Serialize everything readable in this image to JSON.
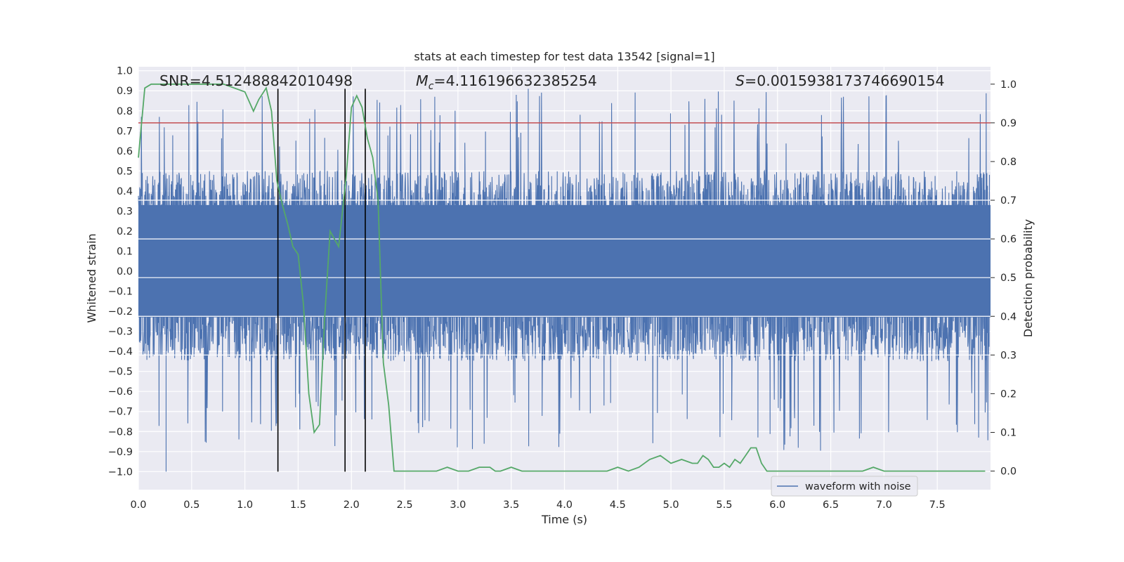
{
  "chart_data": {
    "type": "line",
    "title": "stats at each timestep for test data 13542 [signal=1]",
    "xlabel": "Time (s)",
    "ylabel": "Whitened strain",
    "y2label": "Detection probability",
    "xlim": [
      0.0,
      8.0
    ],
    "ylim": [
      -1.09,
      1.02
    ],
    "y2lim": [
      -0.048,
      1.045
    ],
    "xticks": [
      "0.0",
      "0.5",
      "1.0",
      "1.5",
      "2.0",
      "2.5",
      "3.0",
      "3.5",
      "4.0",
      "4.5",
      "5.0",
      "5.5",
      "6.0",
      "6.5",
      "7.0",
      "7.5"
    ],
    "yticks": [
      "1.0",
      "0.9",
      "0.8",
      "0.7",
      "0.6",
      "0.5",
      "0.4",
      "0.3",
      "0.2",
      "0.1",
      "0.0",
      "-0.1",
      "-0.2",
      "-0.3",
      "-0.4",
      "-0.5",
      "-0.6",
      "-0.7",
      "-0.8",
      "-0.9",
      "-1.0"
    ],
    "y2ticks": [
      "1.0",
      "0.9",
      "0.8",
      "0.7",
      "0.6",
      "0.5",
      "0.4",
      "0.3",
      "0.2",
      "0.1",
      "0.0"
    ],
    "grid": true,
    "legend_position": "lower-right",
    "annotations": [
      {
        "prefix": "SNR=",
        "value": "4.512488842010498"
      },
      {
        "prefix": "M",
        "sub": "c",
        "eq": "=",
        "value": "4.116196632385254"
      },
      {
        "prefix": "S",
        "eq": "=",
        "value": "0.0015938173746690154"
      }
    ],
    "series": [
      {
        "name": "waveform with noise",
        "axis": "left",
        "color": "#4c72b0",
        "kind": "noise",
        "typical_range": [
          -0.45,
          0.5
        ],
        "max_peak": 0.91,
        "min_peak": -1.0,
        "x_range": [
          0.0,
          7.99
        ]
      },
      {
        "axis": "right",
        "color": "#55a868",
        "x": [
          0.0,
          0.06,
          0.12,
          0.2,
          0.3,
          0.4,
          0.5,
          0.6,
          0.7,
          0.8,
          0.9,
          1.0,
          1.08,
          1.13,
          1.2,
          1.25,
          1.3,
          1.35,
          1.4,
          1.45,
          1.5,
          1.55,
          1.6,
          1.65,
          1.7,
          1.75,
          1.8,
          1.88,
          1.95,
          2.0,
          2.05,
          2.1,
          2.15,
          2.2,
          2.25,
          2.3,
          2.35,
          2.4,
          2.45,
          2.5,
          2.6,
          2.7,
          2.8,
          2.9,
          3.0,
          3.1,
          3.2,
          3.3,
          3.35,
          3.4,
          3.5,
          3.6,
          3.7,
          3.8,
          3.9,
          4.0,
          4.1,
          4.2,
          4.3,
          4.4,
          4.5,
          4.6,
          4.7,
          4.8,
          4.9,
          5.0,
          5.1,
          5.2,
          5.25,
          5.3,
          5.35,
          5.4,
          5.45,
          5.5,
          5.55,
          5.6,
          5.65,
          5.7,
          5.75,
          5.8,
          5.85,
          5.9,
          5.95,
          6.0,
          6.1,
          6.2,
          6.3,
          6.4,
          6.5,
          6.6,
          6.7,
          6.8,
          6.9,
          7.0,
          7.1,
          7.2,
          7.3,
          7.4,
          7.5,
          7.6,
          7.7,
          7.8,
          7.95
        ],
        "values": [
          0.81,
          0.99,
          1.0,
          1.0,
          1.0,
          1.0,
          1.0,
          1.0,
          1.0,
          1.0,
          0.99,
          0.98,
          0.93,
          0.96,
          0.99,
          0.93,
          0.75,
          0.69,
          0.64,
          0.58,
          0.56,
          0.43,
          0.2,
          0.1,
          0.12,
          0.4,
          0.62,
          0.58,
          0.76,
          0.94,
          0.97,
          0.94,
          0.86,
          0.81,
          0.7,
          0.28,
          0.17,
          0.0,
          0.0,
          0.0,
          0.0,
          0.0,
          0.0,
          0.01,
          0.0,
          0.0,
          0.01,
          0.01,
          0.0,
          0.0,
          0.01,
          0.0,
          0.0,
          0.0,
          0.0,
          0.0,
          0.0,
          0.0,
          0.0,
          0.0,
          0.01,
          0.0,
          0.01,
          0.03,
          0.04,
          0.02,
          0.03,
          0.02,
          0.02,
          0.04,
          0.03,
          0.01,
          0.01,
          0.02,
          0.01,
          0.03,
          0.02,
          0.04,
          0.06,
          0.06,
          0.02,
          0.0,
          0.0,
          0.0,
          0.0,
          0.0,
          0.0,
          0.0,
          0.0,
          0.0,
          0.0,
          0.0,
          0.01,
          0.0,
          0.0,
          0.0,
          0.0,
          0.0,
          0.0,
          0.0,
          0.0,
          0.0,
          0.0
        ]
      }
    ],
    "threshold": {
      "axis": "right",
      "value": 0.9,
      "color": "#c44e52"
    },
    "vlines": {
      "axis": "left",
      "color": "#000000",
      "x": [
        1.31,
        1.94,
        2.13
      ],
      "from": -1.0,
      "to": 0.91
    }
  }
}
